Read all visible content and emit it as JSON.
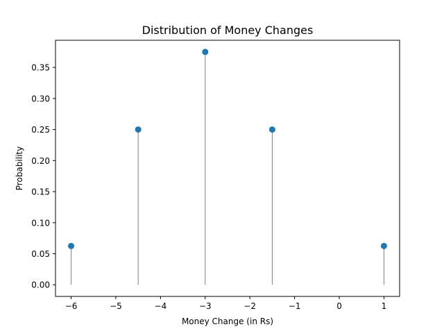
{
  "chart_data": {
    "type": "stem",
    "title": "Distribution of Money Changes",
    "xlabel": "Money Change (in Rs)",
    "ylabel": "Probability",
    "x": [
      -6,
      -4.5,
      -3,
      -1.5,
      1
    ],
    "y": [
      0.0625,
      0.25,
      0.375,
      0.25,
      0.0625
    ],
    "xlim": [
      -6.35,
      1.35
    ],
    "ylim": [
      -0.01875,
      0.39375
    ],
    "xticks": [
      -6,
      -5,
      -4,
      -3,
      -2,
      -1,
      0,
      1
    ],
    "xtick_labels": [
      "−6",
      "−5",
      "−4",
      "−3",
      "−2",
      "−1",
      "0",
      "1"
    ],
    "yticks": [
      0.0,
      0.05,
      0.1,
      0.15,
      0.2,
      0.25,
      0.3,
      0.35
    ],
    "ytick_labels": [
      "0.00",
      "0.05",
      "0.10",
      "0.15",
      "0.20",
      "0.25",
      "0.30",
      "0.35"
    ],
    "grid": false,
    "colors": {
      "marker": "#1f77b4",
      "stem": "#808080",
      "axis": "#000000"
    }
  }
}
